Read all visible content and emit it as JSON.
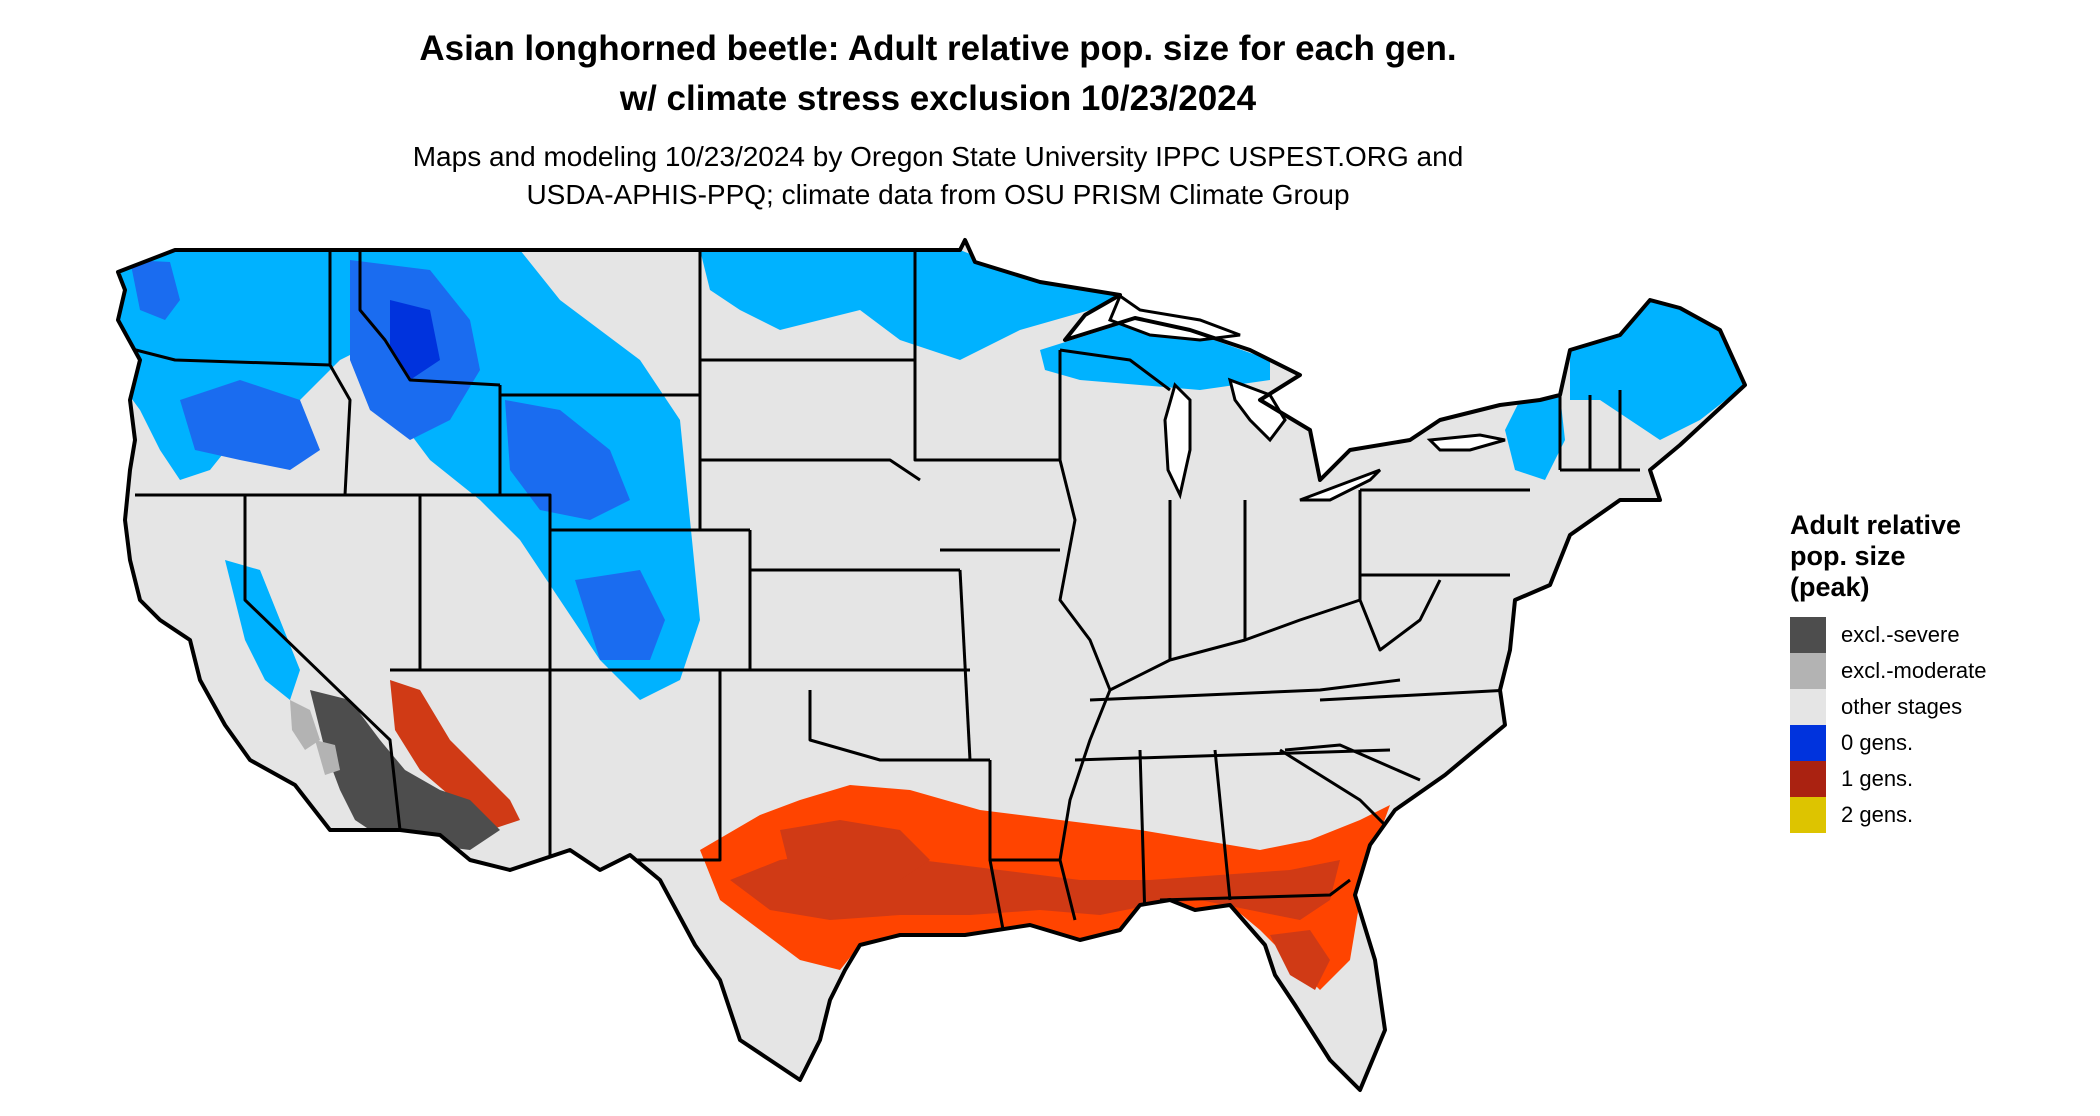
{
  "title": {
    "line1": "Asian longhorned beetle: Adult relative pop. size for each gen.",
    "line2": "w/ climate stress exclusion 10/23/2024"
  },
  "subtitle": {
    "line1": "Maps and modeling 10/23/2024 by Oregon State University IPPC USPEST.ORG and",
    "line2": "USDA-APHIS-PPQ; climate data from OSU PRISM Climate Group"
  },
  "legend": {
    "title_lines": [
      "Adult relative",
      "pop. size",
      "(peak)"
    ],
    "items": [
      {
        "label": "excl.-severe",
        "color": "#4d4d4d"
      },
      {
        "label": "excl.-moderate",
        "color": "#b3b3b3"
      },
      {
        "label": "other stages",
        "color": "#e5e5e5"
      },
      {
        "label": "0 gens.",
        "color": "#0033dd"
      },
      {
        "label": "1 gens.",
        "color": "#aa2211"
      },
      {
        "label": "2 gens.",
        "color": "#ddc400"
      }
    ]
  },
  "map": {
    "region": "contiguous-us",
    "base_color": "#e5e5e5",
    "border_color": "#000000",
    "zones": [
      {
        "name": "0-gens-light",
        "color": "#00b2ff"
      },
      {
        "name": "0-gens-mid",
        "color": "#1a6cf0"
      },
      {
        "name": "0-gens-dark",
        "color": "#0033dd"
      },
      {
        "name": "1-gens-bright",
        "color": "#ff4400"
      },
      {
        "name": "1-gens-dark",
        "color": "#d03a15"
      },
      {
        "name": "excl-severe",
        "color": "#4d4d4d"
      },
      {
        "name": "excl-moderate",
        "color": "#b3b3b3"
      }
    ]
  }
}
